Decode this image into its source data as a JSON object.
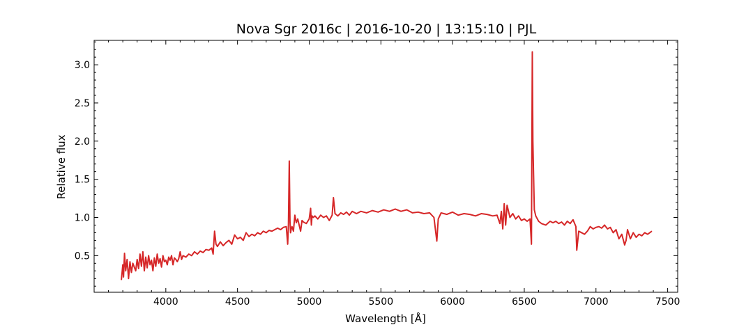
{
  "chart_data": {
    "type": "line",
    "title": "Nova Sgr 2016c | 2016-10-20 | 13:15:10 | PJL",
    "xlabel": "Wavelength [Å]",
    "ylabel": "Relative flux",
    "xlim": [
      3500,
      7570
    ],
    "ylim": [
      0.02,
      3.32
    ],
    "xticks": [
      4000,
      4500,
      5000,
      5500,
      6000,
      6500,
      7000,
      7500
    ],
    "yticks": [
      0.5,
      1.0,
      1.5,
      2.0,
      2.5,
      3.0
    ],
    "xtick_labels": [
      "4000",
      "4500",
      "5000",
      "5500",
      "6000",
      "6500",
      "7000",
      "7500"
    ],
    "ytick_labels": [
      "0.5",
      "1.0",
      "1.5",
      "2.0",
      "2.5",
      "3.0"
    ],
    "grid": false,
    "legend": null,
    "series": [
      {
        "color": "#d62728",
        "x": [
          3690,
          3700,
          3705,
          3712,
          3720,
          3730,
          3740,
          3750,
          3760,
          3770,
          3780,
          3790,
          3800,
          3810,
          3820,
          3830,
          3840,
          3850,
          3860,
          3870,
          3880,
          3890,
          3900,
          3910,
          3920,
          3930,
          3940,
          3950,
          3960,
          3970,
          3980,
          3990,
          4000,
          4010,
          4020,
          4030,
          4040,
          4050,
          4060,
          4070,
          4080,
          4090,
          4100,
          4110,
          4120,
          4140,
          4160,
          4180,
          4200,
          4220,
          4240,
          4260,
          4280,
          4300,
          4320,
          4330,
          4340,
          4350,
          4360,
          4380,
          4400,
          4420,
          4440,
          4460,
          4480,
          4500,
          4520,
          4540,
          4560,
          4580,
          4600,
          4620,
          4640,
          4660,
          4680,
          4700,
          4720,
          4740,
          4760,
          4780,
          4800,
          4820,
          4840,
          4850,
          4855,
          4861,
          4866,
          4870,
          4875,
          4880,
          4890,
          4900,
          4910,
          4920,
          4930,
          4940,
          4950,
          4960,
          4980,
          5000,
          5010,
          5015,
          5020,
          5030,
          5040,
          5060,
          5080,
          5100,
          5120,
          5140,
          5160,
          5169,
          5180,
          5200,
          5220,
          5240,
          5260,
          5280,
          5300,
          5330,
          5360,
          5400,
          5440,
          5480,
          5520,
          5560,
          5600,
          5640,
          5680,
          5720,
          5760,
          5800,
          5840,
          5870,
          5890,
          5900,
          5920,
          5960,
          6000,
          6040,
          6080,
          6120,
          6160,
          6200,
          6240,
          6280,
          6310,
          6330,
          6340,
          6350,
          6360,
          6370,
          6380,
          6400,
          6420,
          6440,
          6460,
          6480,
          6500,
          6520,
          6540,
          6550,
          6556,
          6560,
          6565,
          6570,
          6580,
          6600,
          6620,
          6650,
          6680,
          6700,
          6720,
          6740,
          6760,
          6780,
          6800,
          6820,
          6840,
          6860,
          6866,
          6880,
          6900,
          6920,
          6940,
          6960,
          6980,
          7000,
          7020,
          7040,
          7060,
          7080,
          7100,
          7120,
          7140,
          7160,
          7180,
          7200,
          7210,
          7220,
          7240,
          7260,
          7280,
          7300,
          7320,
          7340,
          7360,
          7390
        ],
        "y": [
          0.18,
          0.38,
          0.22,
          0.53,
          0.3,
          0.45,
          0.2,
          0.42,
          0.28,
          0.4,
          0.35,
          0.3,
          0.45,
          0.33,
          0.52,
          0.36,
          0.55,
          0.3,
          0.48,
          0.34,
          0.5,
          0.38,
          0.44,
          0.3,
          0.47,
          0.36,
          0.52,
          0.4,
          0.46,
          0.35,
          0.5,
          0.42,
          0.44,
          0.38,
          0.48,
          0.44,
          0.5,
          0.38,
          0.47,
          0.45,
          0.42,
          0.46,
          0.55,
          0.45,
          0.5,
          0.48,
          0.52,
          0.5,
          0.55,
          0.52,
          0.56,
          0.54,
          0.58,
          0.57,
          0.6,
          0.52,
          0.82,
          0.65,
          0.62,
          0.68,
          0.63,
          0.67,
          0.7,
          0.65,
          0.77,
          0.72,
          0.74,
          0.7,
          0.8,
          0.75,
          0.78,
          0.76,
          0.8,
          0.78,
          0.82,
          0.8,
          0.83,
          0.82,
          0.84,
          0.86,
          0.84,
          0.87,
          0.88,
          0.65,
          0.9,
          1.74,
          0.95,
          0.8,
          0.85,
          0.88,
          0.82,
          1.03,
          0.93,
          0.98,
          0.9,
          0.82,
          0.96,
          0.94,
          0.92,
          0.98,
          1.12,
          0.9,
          1.02,
          1.0,
          1.02,
          0.98,
          1.03,
          1.0,
          1.02,
          0.96,
          1.03,
          1.26,
          1.05,
          1.02,
          1.06,
          1.04,
          1.07,
          1.03,
          1.08,
          1.05,
          1.08,
          1.06,
          1.09,
          1.07,
          1.1,
          1.08,
          1.11,
          1.08,
          1.1,
          1.06,
          1.07,
          1.05,
          1.06,
          1.0,
          0.69,
          0.98,
          1.06,
          1.04,
          1.07,
          1.03,
          1.05,
          1.04,
          1.02,
          1.05,
          1.04,
          1.02,
          1.03,
          0.92,
          1.08,
          0.85,
          1.18,
          0.9,
          1.16,
          1.0,
          1.05,
          0.98,
          1.02,
          0.96,
          0.98,
          0.95,
          0.98,
          0.65,
          3.17,
          2.0,
          1.55,
          1.1,
          1.02,
          0.95,
          0.92,
          0.9,
          0.95,
          0.93,
          0.95,
          0.92,
          0.94,
          0.9,
          0.95,
          0.92,
          0.97,
          0.88,
          0.57,
          0.82,
          0.8,
          0.78,
          0.82,
          0.88,
          0.85,
          0.87,
          0.88,
          0.86,
          0.9,
          0.85,
          0.87,
          0.8,
          0.84,
          0.72,
          0.78,
          0.64,
          0.7,
          0.84,
          0.72,
          0.8,
          0.74,
          0.78,
          0.76,
          0.8,
          0.78,
          0.82
        ]
      }
    ]
  }
}
